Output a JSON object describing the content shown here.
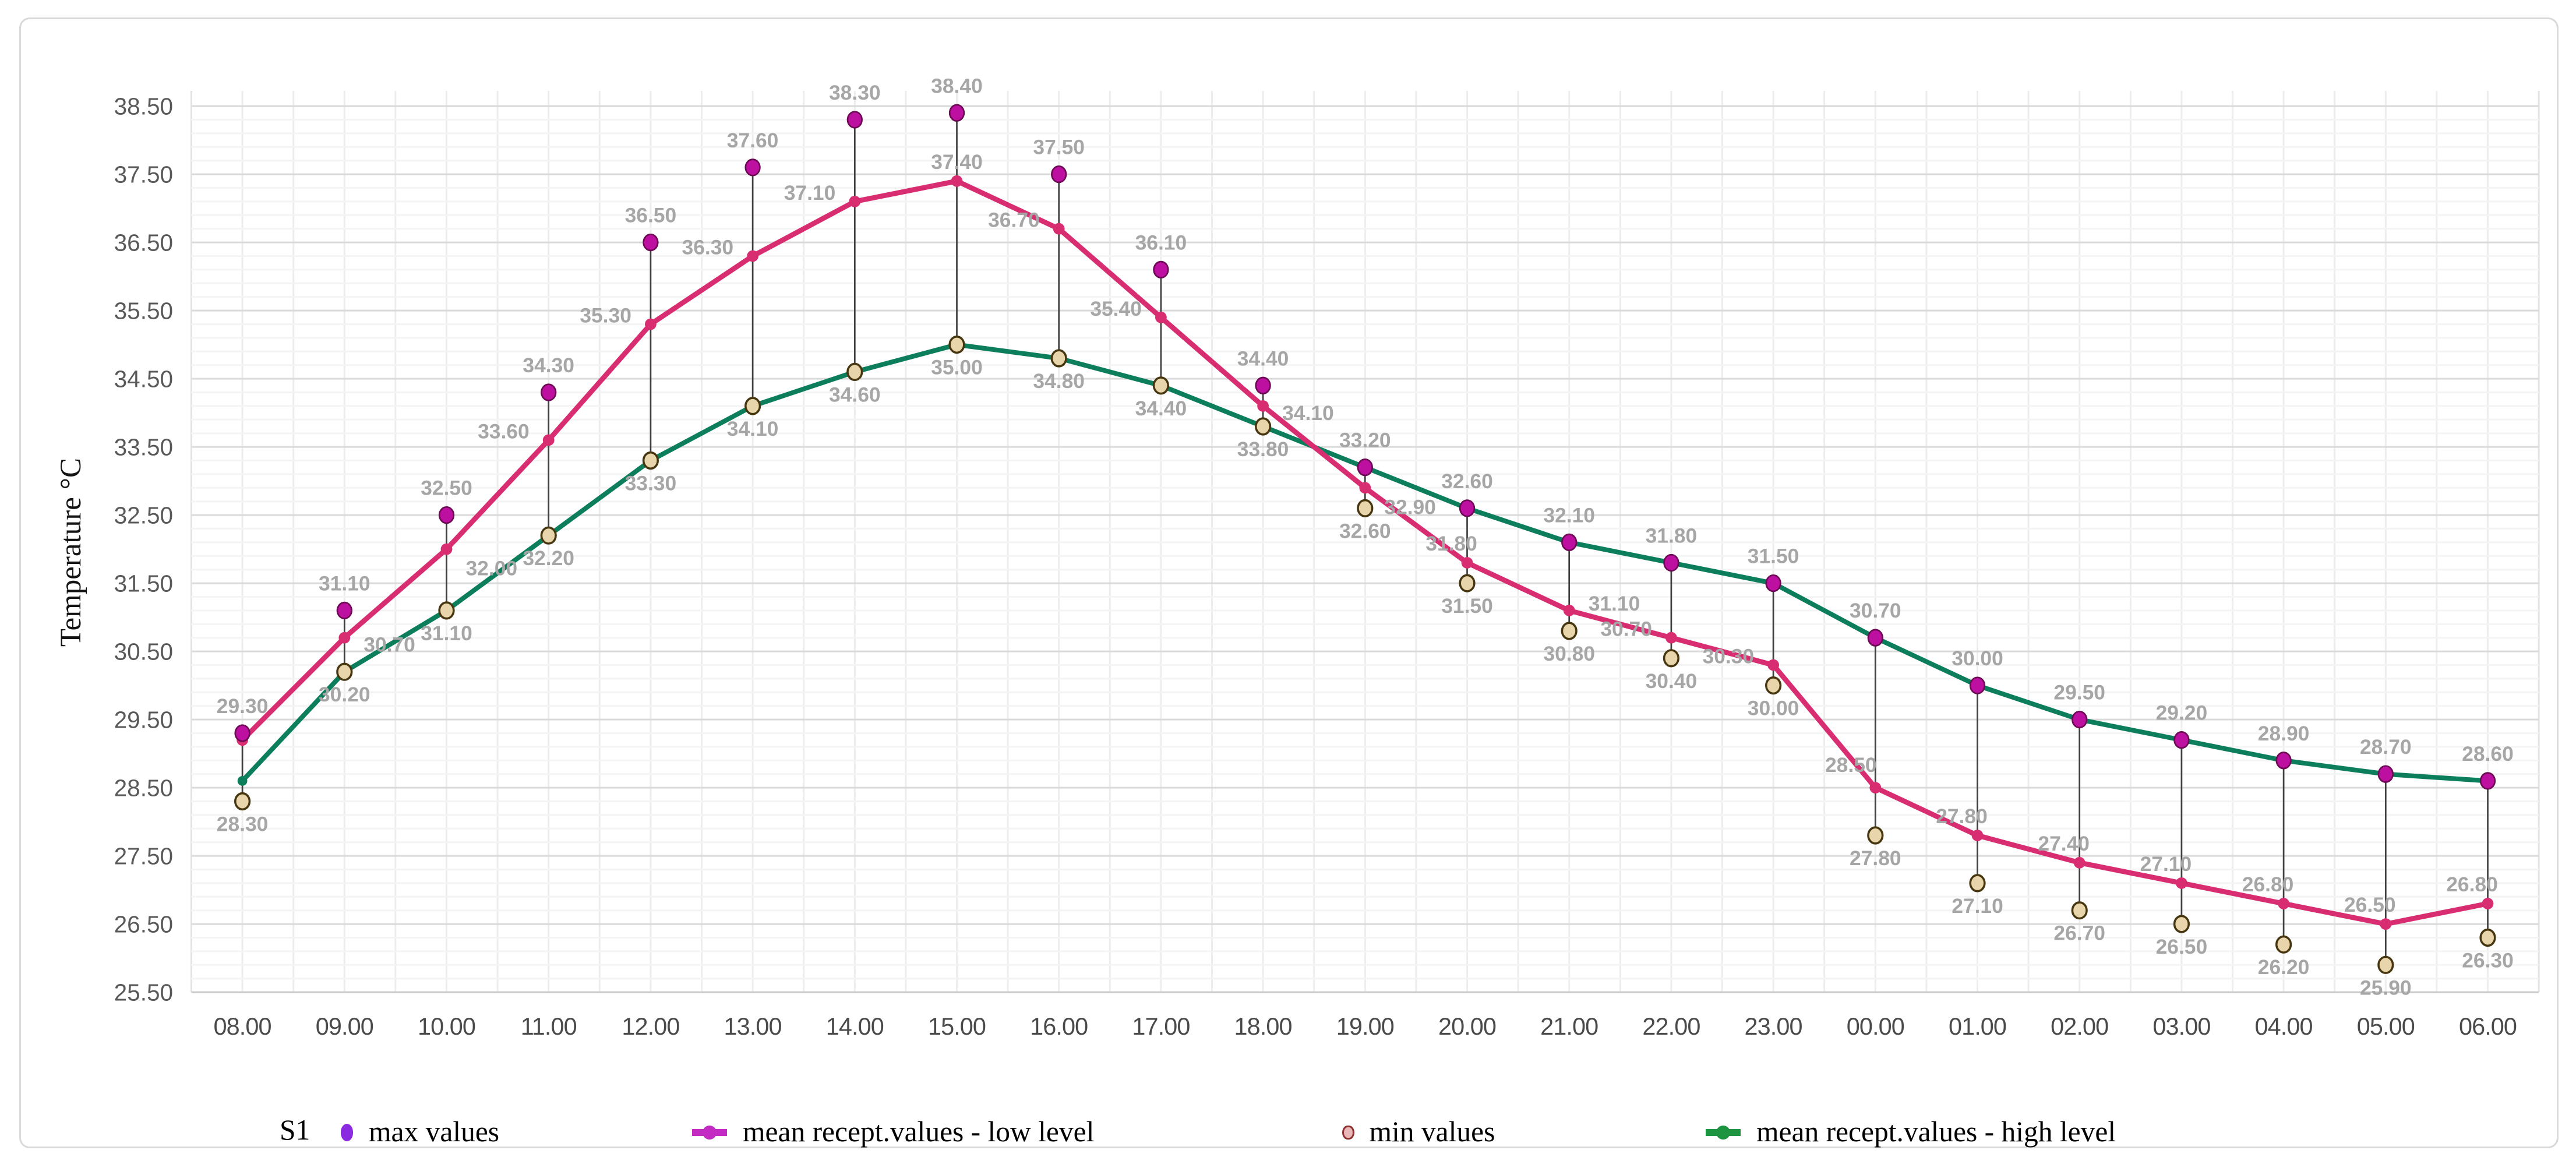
{
  "legend": {
    "prefix": "S1",
    "items": [
      {
        "label": "max values",
        "marker": "dot",
        "color": "#8a2be2"
      },
      {
        "label": "mean recept.values - low level",
        "marker": "line-dot",
        "color": "#c22cc2"
      },
      {
        "label": "min values",
        "marker": "dot",
        "color": "#e9b7b7",
        "border": "#8c3030"
      },
      {
        "label": "mean recept.values - high level",
        "marker": "line-dot",
        "color": "#1d9440"
      }
    ]
  },
  "chart_data": {
    "type": "line",
    "title": "",
    "xlabel": "",
    "ylabel": "Temperature °C",
    "x": [
      "08.00",
      "09.00",
      "10.00",
      "11.00",
      "12.00",
      "13.00",
      "14.00",
      "15.00",
      "16.00",
      "17.00",
      "18.00",
      "19.00",
      "20.00",
      "21.00",
      "22.00",
      "23.00",
      "00.00",
      "01.00",
      "02.00",
      "03.00",
      "04.00",
      "05.00",
      "06.00"
    ],
    "ylim": [
      25.5,
      38.5
    ],
    "y_tick_step": 1.0,
    "grid": {
      "h_major_step": 1.0,
      "h_minor_step": 0.2,
      "v_lines_per_hour": 2,
      "grid_on": true
    },
    "legend_position": "bottom",
    "point_label_color": "#a6a6a6",
    "connector_color": "#404040",
    "series": [
      {
        "name": "max values",
        "type": "scatter",
        "color": "#be10a0",
        "stroke": "#6e0a55",
        "labeled": true,
        "values": [
          29.3,
          31.1,
          32.5,
          34.3,
          36.5,
          37.6,
          38.3,
          38.4,
          37.5,
          36.1,
          34.4,
          33.2,
          32.6,
          32.1,
          31.8,
          31.5,
          30.7,
          30.0,
          29.5,
          29.2,
          28.9,
          28.7,
          28.6
        ]
      },
      {
        "name": "mean recept.values - low level",
        "type": "line",
        "color": "#d92d72",
        "labeled": true,
        "unlabeled_indices": [
          0
        ],
        "values": [
          29.2,
          30.7,
          32.0,
          33.6,
          35.3,
          36.3,
          37.1,
          37.4,
          36.7,
          35.4,
          34.1,
          32.9,
          31.8,
          31.1,
          30.7,
          30.3,
          28.5,
          27.8,
          27.4,
          27.1,
          26.8,
          26.5,
          26.8
        ]
      },
      {
        "name": "min values",
        "type": "scatter",
        "color": "#e9d5ac",
        "stroke": "#473711",
        "labeled": true,
        "values": [
          28.3,
          30.2,
          31.1,
          32.2,
          33.3,
          34.1,
          34.6,
          35.0,
          34.8,
          34.4,
          33.8,
          32.6,
          31.5,
          30.8,
          30.4,
          30.0,
          27.8,
          27.1,
          26.7,
          26.5,
          26.2,
          25.9,
          26.3
        ]
      },
      {
        "name": "mean recept.values - high level",
        "type": "line",
        "color": "#0d7e5b",
        "labeled": false,
        "values": [
          28.6,
          30.2,
          31.1,
          32.2,
          33.3,
          34.1,
          34.6,
          35.0,
          34.8,
          34.4,
          33.8,
          33.2,
          32.6,
          32.1,
          31.8,
          31.5,
          30.7,
          30.0,
          29.5,
          29.2,
          28.9,
          28.7,
          28.6
        ]
      }
    ],
    "connectors": {
      "between": [
        "max values",
        "min values"
      ]
    }
  }
}
